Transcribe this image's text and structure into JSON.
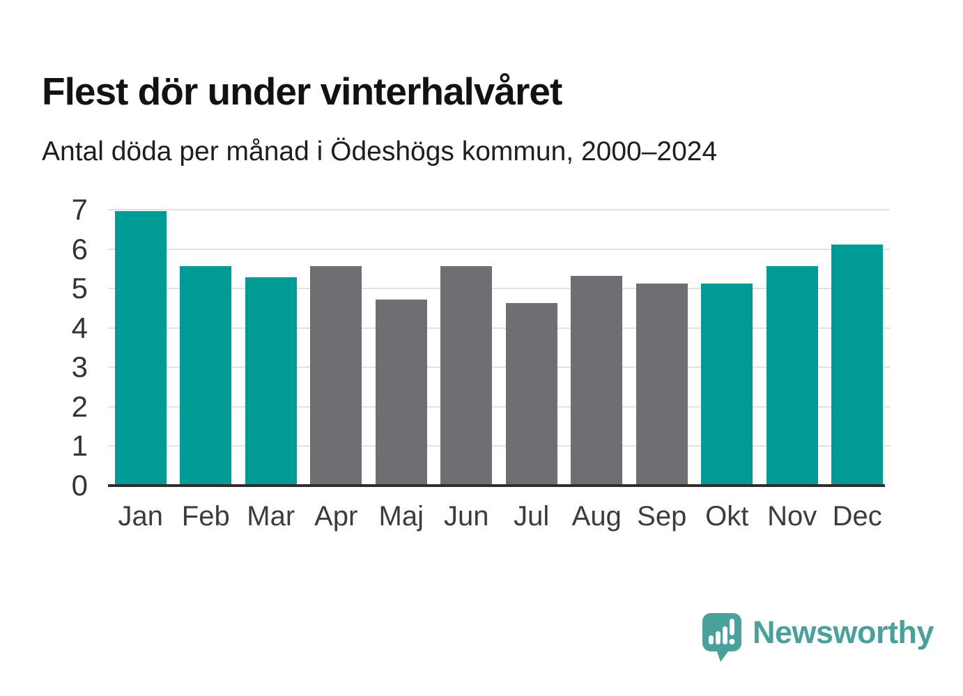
{
  "title": "Flest dör under vinterhalvåret",
  "subtitle": "Antal döda per månad i Ödeshögs kommun, 2000–2024",
  "branding": {
    "logo_text": "Newsworthy",
    "logo_icon": "newsworthy-speech-bubble-bar-chart-icon"
  },
  "colors": {
    "teal": "#009b94",
    "gray": "#6e6e73",
    "logo_teal": "#4aa09a",
    "grid": "#e1e1e1",
    "axis": "#2e2e2e"
  },
  "chart_data": {
    "type": "bar",
    "title": "Flest dör under vinterhalvåret",
    "subtitle": "Antal döda per månad i Ödeshögs kommun, 2000–2024",
    "categories": [
      "Jan",
      "Feb",
      "Mar",
      "Apr",
      "Maj",
      "Jun",
      "Jul",
      "Aug",
      "Sep",
      "Okt",
      "Nov",
      "Dec"
    ],
    "values": [
      6.96,
      5.56,
      5.28,
      5.56,
      4.72,
      5.56,
      4.64,
      5.32,
      5.12,
      5.12,
      5.56,
      6.12
    ],
    "bar_colors": [
      "teal",
      "teal",
      "teal",
      "gray",
      "gray",
      "gray",
      "gray",
      "gray",
      "gray",
      "teal",
      "teal",
      "teal"
    ],
    "xlabel": "",
    "ylabel": "",
    "ylim": [
      0,
      7
    ],
    "yticks": [
      0,
      1,
      2,
      3,
      4,
      5,
      6,
      7
    ],
    "grid": "horizontal",
    "legend": "none"
  }
}
